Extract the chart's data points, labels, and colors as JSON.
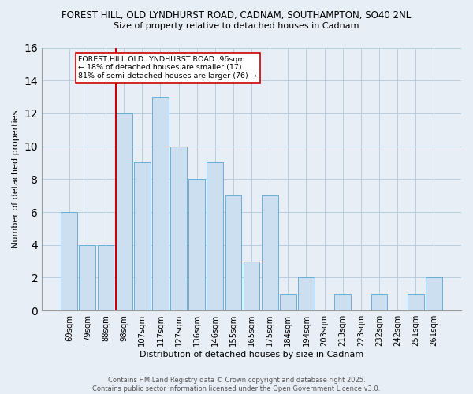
{
  "title1": "FOREST HILL, OLD LYNDHURST ROAD, CADNAM, SOUTHAMPTON, SO40 2NL",
  "title2": "Size of property relative to detached houses in Cadnam",
  "xlabel": "Distribution of detached houses by size in Cadnam",
  "ylabel": "Number of detached properties",
  "bar_labels": [
    "69sqm",
    "79sqm",
    "88sqm",
    "98sqm",
    "107sqm",
    "117sqm",
    "127sqm",
    "136sqm",
    "146sqm",
    "155sqm",
    "165sqm",
    "175sqm",
    "184sqm",
    "194sqm",
    "203sqm",
    "213sqm",
    "223sqm",
    "232sqm",
    "242sqm",
    "251sqm",
    "261sqm"
  ],
  "bar_values": [
    6,
    4,
    4,
    12,
    9,
    13,
    10,
    8,
    9,
    7,
    3,
    7,
    1,
    2,
    0,
    1,
    0,
    1,
    0,
    1,
    2
  ],
  "bar_color": "#ccdff0",
  "bar_edge_color": "#6aaed6",
  "vline_color": "#cc0000",
  "annotation_text": "FOREST HILL OLD LYNDHURST ROAD: 96sqm\n← 18% of detached houses are smaller (17)\n81% of semi-detached houses are larger (76) →",
  "annotation_box_color": "white",
  "annotation_box_edge": "#cc0000",
  "ylim": [
    0,
    16
  ],
  "yticks": [
    0,
    2,
    4,
    6,
    8,
    10,
    12,
    14,
    16
  ],
  "footer": "Contains HM Land Registry data © Crown copyright and database right 2025.\nContains public sector information licensed under the Open Government Licence v3.0.",
  "bg_color": "#e8eef5",
  "grid_color": "#b8cfe0"
}
